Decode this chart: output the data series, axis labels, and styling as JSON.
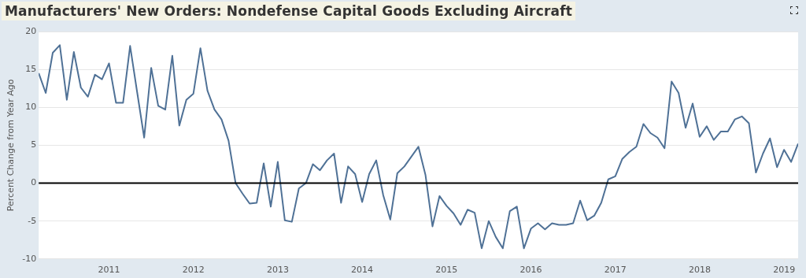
{
  "chart_data": {
    "type": "line",
    "title": "Manufacturers' New Orders: Nondefense Capital Goods Excluding Aircraft",
    "ylabel": "Percent Change from Year Ago",
    "x": [
      "2010-03",
      "2010-04",
      "2010-05",
      "2010-06",
      "2010-07",
      "2010-08",
      "2010-09",
      "2010-10",
      "2010-11",
      "2010-12",
      "2011-01",
      "2011-02",
      "2011-03",
      "2011-04",
      "2011-05",
      "2011-06",
      "2011-07",
      "2011-08",
      "2011-09",
      "2011-10",
      "2011-11",
      "2011-12",
      "2012-01",
      "2012-02",
      "2012-03",
      "2012-04",
      "2012-05",
      "2012-06",
      "2012-07",
      "2012-08",
      "2012-09",
      "2012-10",
      "2012-11",
      "2012-12",
      "2013-01",
      "2013-02",
      "2013-03",
      "2013-04",
      "2013-05",
      "2013-06",
      "2013-07",
      "2013-08",
      "2013-09",
      "2013-10",
      "2013-11",
      "2013-12",
      "2014-01",
      "2014-02",
      "2014-03",
      "2014-04",
      "2014-05",
      "2014-06",
      "2014-07",
      "2014-08",
      "2014-09",
      "2014-10",
      "2014-11",
      "2014-12",
      "2015-01",
      "2015-02",
      "2015-03",
      "2015-04",
      "2015-05",
      "2015-06",
      "2015-07",
      "2015-08",
      "2015-09",
      "2015-10",
      "2015-11",
      "2015-12",
      "2016-01",
      "2016-02",
      "2016-03",
      "2016-04",
      "2016-05",
      "2016-06",
      "2016-07",
      "2016-08",
      "2016-09",
      "2016-10",
      "2016-11",
      "2016-12",
      "2017-01",
      "2017-02",
      "2017-03",
      "2017-04",
      "2017-05",
      "2017-06",
      "2017-07",
      "2017-08",
      "2017-09",
      "2017-10",
      "2017-11",
      "2017-12",
      "2018-01",
      "2018-02",
      "2018-03",
      "2018-04",
      "2018-05",
      "2018-06",
      "2018-07",
      "2018-08",
      "2018-09",
      "2018-10",
      "2018-11",
      "2018-12",
      "2019-01",
      "2019-02",
      "2019-03"
    ],
    "series": [
      {
        "color": "#4f7196",
        "values": [
          14.5,
          11.9,
          17.2,
          18.2,
          11.0,
          17.3,
          12.6,
          11.4,
          14.3,
          13.7,
          15.8,
          10.6,
          10.6,
          18.1,
          12.0,
          6.0,
          15.2,
          10.2,
          9.7,
          16.8,
          7.6,
          11.0,
          11.8,
          17.8,
          12.2,
          9.7,
          8.4,
          5.6,
          0.0,
          -1.4,
          -2.7,
          -2.6,
          2.6,
          -3.1,
          2.8,
          -4.9,
          -5.1,
          -0.7,
          0.0,
          2.5,
          1.7,
          3.0,
          3.9,
          -2.6,
          2.2,
          1.2,
          -2.5,
          1.2,
          3.0,
          -1.6,
          -4.8,
          1.3,
          2.2,
          3.5,
          4.8,
          1.1,
          -5.7,
          -1.7,
          -3.0,
          -4.0,
          -5.5,
          -3.5,
          -3.9,
          -8.6,
          -5.0,
          -7.1,
          -8.6,
          -3.7,
          -3.1,
          -8.6,
          -6.0,
          -5.3,
          -6.1,
          -5.3,
          -5.5,
          -5.5,
          -5.3,
          -2.3,
          -4.9,
          -4.3,
          -2.6,
          0.5,
          0.9,
          3.2,
          4.1,
          4.8,
          7.8,
          6.6,
          6.0,
          4.6,
          13.4,
          11.9,
          7.3,
          10.5,
          6.1,
          7.5,
          5.7,
          6.8,
          6.8,
          8.4,
          8.8,
          7.9,
          1.4,
          3.9,
          5.9,
          2.1,
          4.4,
          2.8,
          5.2
        ]
      }
    ],
    "xlim": [
      "2010-03",
      "2019-03"
    ],
    "xticks": [
      {
        "value": "2011",
        "label": "2011"
      },
      {
        "value": "2012",
        "label": "2012"
      },
      {
        "value": "2013",
        "label": "2013"
      },
      {
        "value": "2014",
        "label": "2014"
      },
      {
        "value": "2015",
        "label": "2015"
      },
      {
        "value": "2016",
        "label": "2016"
      },
      {
        "value": "2017",
        "label": "2017"
      },
      {
        "value": "2018",
        "label": "2018"
      },
      {
        "value": "2019",
        "label": "2019"
      }
    ],
    "ylim": [
      -10,
      20
    ],
    "yticks": [
      -10,
      -5,
      0,
      5,
      10,
      15,
      20
    ],
    "ref_lines": [
      {
        "axis": "y",
        "value": 0,
        "color": "#000000"
      }
    ],
    "grid": "y",
    "legend": false,
    "marker": "none",
    "line_style": "solid"
  }
}
